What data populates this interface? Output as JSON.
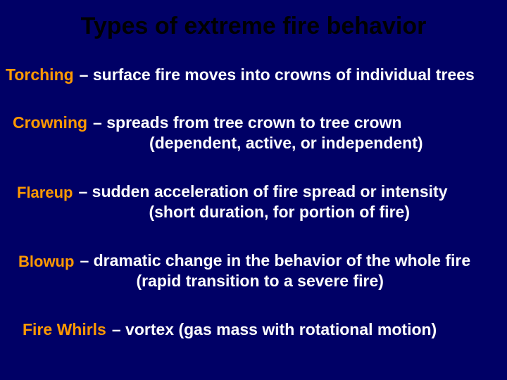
{
  "colors": {
    "background": "#000066",
    "title": "#000000",
    "term": "#ff9900",
    "definition": "#ffffff"
  },
  "typography": {
    "family": "Arial",
    "title_fontsize": 34,
    "body_fontsize": 23,
    "weight": "bold"
  },
  "title": "Types of extreme fire behavior",
  "items": [
    {
      "term": "Torching",
      "def": "– surface fire moves into crowns of individual trees",
      "sub": ""
    },
    {
      "term": "Crowning",
      "def": "– spreads from tree crown to tree crown",
      "sub": "(dependent, active, or independent)"
    },
    {
      "term": "Flareup",
      "def": "– sudden acceleration of fire spread or intensity",
      "sub": "(short duration, for portion of fire)"
    },
    {
      "term": "Blowup",
      "def": "– dramatic change in the behavior of the whole fire",
      "sub": "(rapid transition to a severe fire)"
    },
    {
      "term": "Fire Whirls",
      "def": "– vortex (gas mass with rotational motion)",
      "sub": ""
    }
  ]
}
